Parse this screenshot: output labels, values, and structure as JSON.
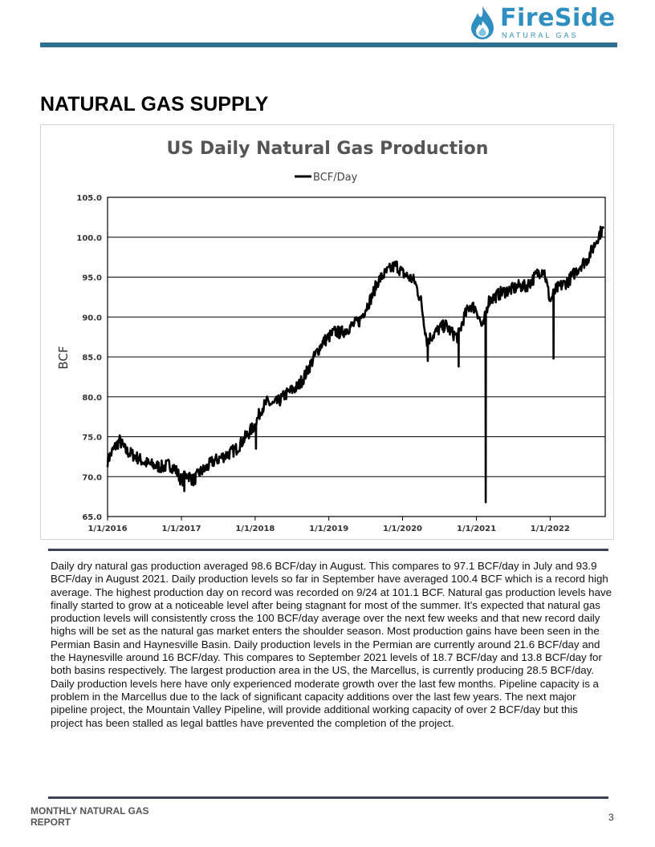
{
  "header": {
    "logo_name": "FireSide",
    "logo_sub": "NATURAL GAS",
    "logo_icon": "flame-drop-icon",
    "brand_color": "#2f8fc0",
    "rule_color": "#2a7193"
  },
  "page_title": "NATURAL GAS SUPPLY",
  "chart_data": {
    "type": "line",
    "title": "US Daily Natural Gas Production",
    "ylabel": "BCF",
    "xlabel": "",
    "legend_position": "top-center",
    "grid": "horizontal",
    "ylim": [
      65,
      105
    ],
    "yticks": [
      "65.0",
      "70.0",
      "75.0",
      "80.0",
      "85.0",
      "90.0",
      "95.0",
      "100.0",
      "105.0"
    ],
    "xlim": [
      "2016-01-01",
      "2022-10-01"
    ],
    "xticks": [
      "1/1/2016",
      "1/1/2017",
      "1/1/2018",
      "1/1/2019",
      "1/1/2020",
      "1/1/2021",
      "1/1/2022"
    ],
    "series": [
      {
        "name": "BCF/Day",
        "color": "#000000",
        "points": [
          [
            "2016-01-01",
            72.0
          ],
          [
            "2016-02-01",
            73.5
          ],
          [
            "2016-03-01",
            74.5
          ],
          [
            "2016-04-01",
            73.2
          ],
          [
            "2016-05-01",
            72.8
          ],
          [
            "2016-06-01",
            72.3
          ],
          [
            "2016-07-01",
            71.8
          ],
          [
            "2016-08-01",
            71.5
          ],
          [
            "2016-09-01",
            71.3
          ],
          [
            "2016-10-01",
            71.2
          ],
          [
            "2016-11-01",
            71.5
          ],
          [
            "2016-12-01",
            71.0
          ],
          [
            "2017-01-01",
            69.5
          ],
          [
            "2017-02-01",
            70.3
          ],
          [
            "2017-03-01",
            69.5
          ],
          [
            "2017-04-01",
            70.5
          ],
          [
            "2017-05-01",
            71.0
          ],
          [
            "2017-06-01",
            71.8
          ],
          [
            "2017-07-01",
            72.2
          ],
          [
            "2017-08-01",
            72.6
          ],
          [
            "2017-09-01",
            73.0
          ],
          [
            "2017-10-01",
            73.5
          ],
          [
            "2017-11-01",
            74.5
          ],
          [
            "2017-12-01",
            75.5
          ],
          [
            "2018-01-01",
            76.5
          ],
          [
            "2018-02-01",
            78.5
          ],
          [
            "2018-03-01",
            79.3
          ],
          [
            "2018-04-01",
            79.0
          ],
          [
            "2018-05-01",
            79.5
          ],
          [
            "2018-06-01",
            80.3
          ],
          [
            "2018-07-01",
            80.8
          ],
          [
            "2018-08-01",
            81.3
          ],
          [
            "2018-09-01",
            82.5
          ],
          [
            "2018-10-01",
            84.0
          ],
          [
            "2018-11-01",
            85.5
          ],
          [
            "2018-12-01",
            86.8
          ],
          [
            "2019-01-01",
            87.5
          ],
          [
            "2019-02-01",
            88.2
          ],
          [
            "2019-03-01",
            88.0
          ],
          [
            "2019-04-01",
            88.5
          ],
          [
            "2019-05-01",
            89.0
          ],
          [
            "2019-06-01",
            89.5
          ],
          [
            "2019-07-01",
            91.0
          ],
          [
            "2019-08-01",
            92.5
          ],
          [
            "2019-09-01",
            94.5
          ],
          [
            "2019-10-01",
            95.3
          ],
          [
            "2019-11-01",
            96.0
          ],
          [
            "2019-12-01",
            96.5
          ],
          [
            "2020-01-01",
            95.5
          ],
          [
            "2020-02-01",
            95.0
          ],
          [
            "2020-03-01",
            94.5
          ],
          [
            "2020-04-01",
            92.0
          ],
          [
            "2020-05-01",
            87.0
          ],
          [
            "2020-06-01",
            87.8
          ],
          [
            "2020-07-01",
            88.5
          ],
          [
            "2020-08-01",
            89.0
          ],
          [
            "2020-09-01",
            88.0
          ],
          [
            "2020-10-01",
            87.5
          ],
          [
            "2020-11-01",
            90.0
          ],
          [
            "2020-12-01",
            91.5
          ],
          [
            "2021-01-01",
            91.0
          ],
          [
            "2021-02-01",
            88.5
          ],
          [
            "2021-03-01",
            92.0
          ],
          [
            "2021-04-01",
            92.5
          ],
          [
            "2021-05-01",
            93.0
          ],
          [
            "2021-06-01",
            93.3
          ],
          [
            "2021-07-01",
            93.5
          ],
          [
            "2021-08-01",
            93.9
          ],
          [
            "2021-09-01",
            93.8
          ],
          [
            "2021-10-01",
            94.5
          ],
          [
            "2021-11-01",
            95.5
          ],
          [
            "2021-12-01",
            96.0
          ],
          [
            "2022-01-01",
            92.0
          ],
          [
            "2022-02-01",
            93.5
          ],
          [
            "2022-03-01",
            94.0
          ],
          [
            "2022-04-01",
            94.5
          ],
          [
            "2022-05-01",
            95.5
          ],
          [
            "2022-06-01",
            96.5
          ],
          [
            "2022-07-01",
            97.1
          ],
          [
            "2022-08-01",
            98.6
          ],
          [
            "2022-09-01",
            100.4
          ],
          [
            "2022-09-24",
            101.1
          ]
        ]
      }
    ],
    "annotations": [
      {
        "type": "dip",
        "date": "2017-01-15",
        "value": 68.2
      },
      {
        "type": "dip",
        "date": "2018-01-05",
        "value": 73.5
      },
      {
        "type": "dip",
        "date": "2020-05-05",
        "value": 84.5
      },
      {
        "type": "dip",
        "date": "2020-10-05",
        "value": 83.8
      },
      {
        "type": "dip",
        "date": "2021-02-16",
        "value": 66.8
      },
      {
        "type": "dip",
        "date": "2022-01-18",
        "value": 84.8
      }
    ]
  },
  "body_text": "Daily dry natural gas production averaged 98.6 BCF/day in August.  This compares to 97.1 BCF/day in July and 93.9 BCF/day in August 2021.  Daily production levels so far in September have averaged 100.4 BCF which is a record high average.  The highest production day on record was recorded on 9/24 at 101.1 BCF.  Natural gas production levels have finally started to grow at a noticeable level after being stagnant for most of the summer.  It’s expected that natural gas production levels will consistently cross the 100 BCF/day average over the next few weeks and that new record daily highs will be set as the natural gas market enters the shoulder season.  Most production gains have been seen in the Permian Basin and Haynesville Basin.  Daily production levels in the Permian are currently around 21.6 BCF/day and the Haynesville around 16 BCF/day.  This compares to September 2021 levels of 18.7 BCF/day and 13.8 BCF/day for both basins respectively. The largest production area in the US, the Marcellus, is currently producing 28.5 BCF/day.  Daily production levels here have only experienced moderate growth over the last few months.  Pipeline capacity is a problem in the Marcellus due to the lack of significant capacity additions over the last few years.  The next major pipeline project, the Mountain Valley Pipeline, will provide additional working capacity of over 2 BCF/day but this project has been stalled as legal battles have prevented the completion of the project.",
  "footer": {
    "report_name": "MONTHLY NATURAL GAS REPORT",
    "page_number": "3"
  },
  "colors": {
    "rule_dark": "#3a4350",
    "gridline": "#000000",
    "chart_title": "#555555"
  }
}
